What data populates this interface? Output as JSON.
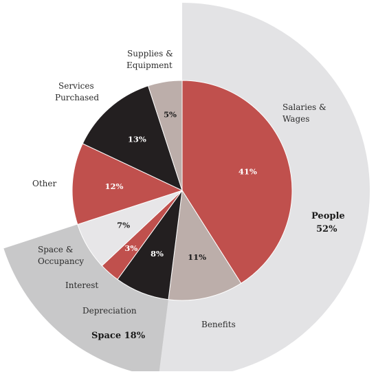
{
  "chart_data": {
    "type": "pie",
    "title": "",
    "slices": [
      {
        "label": "Salaries & Wages",
        "value": 41,
        "display": "41%",
        "color": "#c0504d",
        "text_color": "#ffffff"
      },
      {
        "label": "Benefits",
        "value": 11,
        "display": "11%",
        "color": "#bcaeaa",
        "text_color": "#1a1a1a"
      },
      {
        "label": "Depreciation",
        "value": 8,
        "display": "8%",
        "color": "#231f20",
        "text_color": "#ffffff"
      },
      {
        "label": "Interest",
        "value": 3,
        "display": "3%",
        "color": "#c0504d",
        "text_color": "#ffffff"
      },
      {
        "label": "Space & Occupancy",
        "value": 7,
        "display": "7%",
        "color": "#e7e6e8",
        "text_color": "#1a1a1a"
      },
      {
        "label": "Other",
        "value": 12,
        "display": "12%",
        "color": "#c0504d",
        "text_color": "#ffffff"
      },
      {
        "label": "Services Purchased",
        "value": 13,
        "display": "13%",
        "color": "#231f20",
        "text_color": "#ffffff"
      },
      {
        "label": "Supplies & Equipment",
        "value": 5,
        "display": "5%",
        "color": "#bcaeaa",
        "text_color": "#1a1a1a"
      }
    ],
    "groups": [
      {
        "name": "People",
        "value": 52,
        "display": "52%",
        "members": [
          "Salaries & Wages",
          "Benefits"
        ],
        "color": "#e3e3e5"
      },
      {
        "name": "Space",
        "value": 18,
        "display": "18%",
        "members": [
          "Depreciation",
          "Interest",
          "Space & Occupancy"
        ],
        "color": "#c8c8c9"
      }
    ]
  },
  "labels": {
    "salaries_l1": "Salaries &",
    "salaries_l2": "Wages",
    "benefits": "Benefits",
    "depreciation": "Depreciation",
    "interest": "Interest",
    "space_l1": "Space &",
    "space_l2": "Occupancy",
    "other": "Other",
    "services_l1": "Services",
    "services_l2": "Purchased",
    "supplies_l1": "Supplies &",
    "supplies_l2": "Equipment",
    "people_name": "People",
    "people_pct": "52%",
    "space_group": "Space 18%"
  }
}
